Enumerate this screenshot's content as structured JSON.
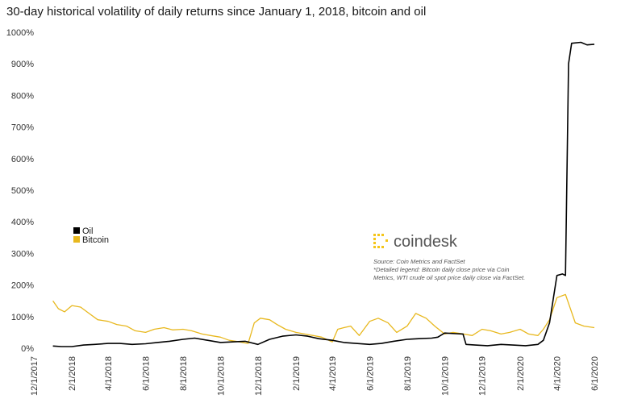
{
  "chart_data": {
    "type": "line",
    "title": "30-day historical volatility of daily returns since January 1, 2018, bitcoin and oil",
    "xlabel": "",
    "ylabel": "",
    "ylim": [
      0,
      1000
    ],
    "y_ticks": [
      "0%",
      "100%",
      "200%",
      "300%",
      "400%",
      "500%",
      "600%",
      "700%",
      "800%",
      "900%",
      "1000%"
    ],
    "x_ticks": [
      "12/1/2017",
      "2/1/2018",
      "4/1/2018",
      "6/1/2018",
      "8/1/2018",
      "10/1/2018",
      "12/1/2018",
      "2/1/2019",
      "4/1/2019",
      "6/1/2019",
      "8/1/2019",
      "10/1/2019",
      "12/1/2019",
      "2/1/2020",
      "4/1/2020",
      "6/1/2020"
    ],
    "legend_position": "left-middle",
    "grid": false,
    "series": [
      {
        "name": "Oil",
        "color": "#000000",
        "x": [
          "2018-01-01",
          "2018-01-15",
          "2018-02-01",
          "2018-02-20",
          "2018-03-10",
          "2018-04-01",
          "2018-04-20",
          "2018-05-10",
          "2018-06-01",
          "2018-06-20",
          "2018-07-10",
          "2018-08-01",
          "2018-08-20",
          "2018-09-10",
          "2018-10-01",
          "2018-10-20",
          "2018-11-10",
          "2018-12-01",
          "2018-12-20",
          "2019-01-10",
          "2019-02-01",
          "2019-02-20",
          "2019-03-10",
          "2019-04-01",
          "2019-04-20",
          "2019-05-10",
          "2019-06-01",
          "2019-06-20",
          "2019-07-10",
          "2019-08-01",
          "2019-08-20",
          "2019-09-10",
          "2019-09-20",
          "2019-10-01",
          "2019-10-20",
          "2019-10-31",
          "2019-11-05",
          "2019-11-20",
          "2019-12-10",
          "2020-01-01",
          "2020-01-20",
          "2020-02-10",
          "2020-03-01",
          "2020-03-10",
          "2020-03-20",
          "2020-04-01",
          "2020-04-10",
          "2020-04-15",
          "2020-04-20",
          "2020-04-25",
          "2020-05-10",
          "2020-05-20",
          "2020-06-01"
        ],
        "values": [
          7,
          5,
          5,
          10,
          12,
          15,
          15,
          12,
          14,
          18,
          22,
          28,
          32,
          25,
          18,
          20,
          22,
          12,
          28,
          38,
          42,
          38,
          30,
          25,
          18,
          15,
          12,
          15,
          22,
          28,
          30,
          32,
          35,
          48,
          46,
          45,
          12,
          10,
          8,
          12,
          10,
          8,
          12,
          25,
          80,
          230,
          235,
          230,
          900,
          965,
          968,
          960,
          962
        ]
      },
      {
        "name": "Bitcoin",
        "color": "#e8b81e",
        "x": [
          "2018-01-01",
          "2018-01-10",
          "2018-01-20",
          "2018-02-01",
          "2018-02-15",
          "2018-03-01",
          "2018-03-15",
          "2018-04-01",
          "2018-04-15",
          "2018-05-01",
          "2018-05-15",
          "2018-06-01",
          "2018-06-15",
          "2018-07-01",
          "2018-07-15",
          "2018-08-01",
          "2018-08-15",
          "2018-09-01",
          "2018-09-15",
          "2018-10-01",
          "2018-10-15",
          "2018-11-01",
          "2018-11-15",
          "2018-11-25",
          "2018-12-05",
          "2018-12-20",
          "2019-01-01",
          "2019-01-15",
          "2019-02-01",
          "2019-02-15",
          "2019-03-01",
          "2019-03-15",
          "2019-04-01",
          "2019-04-10",
          "2019-04-20",
          "2019-05-01",
          "2019-05-15",
          "2019-06-01",
          "2019-06-15",
          "2019-07-01",
          "2019-07-15",
          "2019-08-01",
          "2019-08-15",
          "2019-09-01",
          "2019-09-15",
          "2019-10-01",
          "2019-10-15",
          "2019-11-01",
          "2019-11-15",
          "2019-12-01",
          "2019-12-15",
          "2020-01-01",
          "2020-01-15",
          "2020-02-01",
          "2020-02-15",
          "2020-03-01",
          "2020-03-10",
          "2020-03-20",
          "2020-04-01",
          "2020-04-15",
          "2020-05-01",
          "2020-05-15",
          "2020-06-01"
        ],
        "values": [
          150,
          125,
          115,
          135,
          130,
          110,
          90,
          85,
          75,
          70,
          55,
          50,
          60,
          65,
          58,
          60,
          55,
          45,
          40,
          35,
          25,
          20,
          15,
          80,
          95,
          90,
          75,
          60,
          50,
          45,
          40,
          35,
          20,
          60,
          65,
          70,
          40,
          85,
          95,
          80,
          50,
          70,
          110,
          95,
          70,
          45,
          50,
          45,
          40,
          60,
          55,
          45,
          50,
          60,
          45,
          40,
          60,
          90,
          160,
          170,
          80,
          70,
          65
        ]
      }
    ]
  },
  "legend": {
    "oil_label": "Oil",
    "bitcoin_label": "Bitcoin"
  },
  "branding": {
    "logo_text": "coindesk",
    "logo_color": "#f5c518"
  },
  "source_note": {
    "line1": "Source: Coin Metrics and FactSet",
    "line2": "*Detailed legend: Bitcoin daily close price via Coin",
    "line3": "Metrics, WTI crude oil spot price daily close via FactSet."
  }
}
